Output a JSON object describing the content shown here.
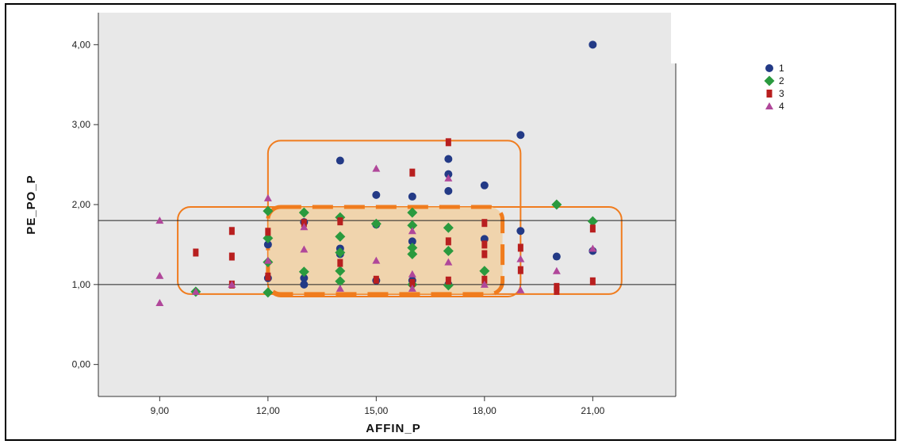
{
  "chart_data": {
    "type": "scatter",
    "xlabel": "AFFIN_P",
    "ylabel": "PE_PO_P",
    "xlim": [
      7.3,
      23.3
    ],
    "ylim": [
      -0.4,
      4.4
    ],
    "x_ticks": [
      "9,00",
      "12,00",
      "15,00",
      "18,00",
      "21,00"
    ],
    "x_tick_values": [
      9,
      12,
      15,
      18,
      21
    ],
    "y_ticks": [
      "0,00",
      "1,00",
      "2,00",
      "3,00",
      "4,00"
    ],
    "y_tick_values": [
      0,
      1,
      2,
      3,
      4
    ],
    "reference_lines_y": [
      1.0,
      1.8
    ],
    "grid": false,
    "legend_position": "top-right",
    "background_color": "#e8e8e8",
    "annotation_color": "#f07c1e",
    "highlight_fill": "#f4c98e",
    "highlight_regions": [
      {
        "style": "solid",
        "x": [
          12,
          19
        ],
        "y": [
          0.85,
          2.8
        ]
      },
      {
        "style": "solid",
        "x": [
          9.5,
          21.8
        ],
        "y": [
          0.88,
          1.97
        ]
      },
      {
        "style": "dashed-filled",
        "x": [
          12,
          18.5
        ],
        "y": [
          0.88,
          1.97
        ]
      }
    ],
    "series": [
      {
        "name": "1",
        "marker": "circle",
        "color": "#233a86",
        "points": [
          [
            14,
            2.55
          ],
          [
            15,
            2.12
          ],
          [
            16,
            2.1
          ],
          [
            17,
            2.57
          ],
          [
            17,
            2.38
          ],
          [
            17,
            2.17
          ],
          [
            18,
            2.24
          ],
          [
            19,
            2.87
          ],
          [
            21,
            4.0
          ],
          [
            20,
            1.35
          ],
          [
            19,
            1.67
          ],
          [
            21,
            1.42
          ],
          [
            18,
            1.57
          ],
          [
            12,
            1.5
          ],
          [
            13,
            1.78
          ],
          [
            14,
            1.45
          ],
          [
            15,
            1.75
          ],
          [
            16,
            1.54
          ],
          [
            12,
            1.08
          ],
          [
            13,
            1.08
          ],
          [
            14,
            1.38
          ],
          [
            16,
            1.05
          ],
          [
            13,
            1.0
          ],
          [
            17,
            1.0
          ],
          [
            15,
            1.05
          ]
        ]
      },
      {
        "name": "2",
        "marker": "diamond",
        "color": "#2a9a3e",
        "points": [
          [
            10,
            0.91
          ],
          [
            12,
            1.92
          ],
          [
            12,
            1.58
          ],
          [
            12,
            1.28
          ],
          [
            12,
            0.9
          ],
          [
            13,
            1.9
          ],
          [
            13,
            1.16
          ],
          [
            14,
            1.84
          ],
          [
            14,
            1.6
          ],
          [
            14,
            1.4
          ],
          [
            14,
            1.17
          ],
          [
            14,
            1.04
          ],
          [
            15,
            1.76
          ],
          [
            16,
            1.9
          ],
          [
            16,
            1.74
          ],
          [
            16,
            1.46
          ],
          [
            16,
            1.38
          ],
          [
            16,
            1.0
          ],
          [
            17,
            1.71
          ],
          [
            17,
            1.42
          ],
          [
            18,
            1.17
          ],
          [
            20,
            2.0
          ],
          [
            21,
            1.79
          ],
          [
            17,
            0.99
          ]
        ]
      },
      {
        "name": "3",
        "marker": "square",
        "color": "#b81f1f",
        "points": [
          [
            10,
            1.4
          ],
          [
            11,
            1.67
          ],
          [
            11,
            1.35
          ],
          [
            11,
            1.0
          ],
          [
            12,
            1.66
          ],
          [
            12,
            1.1
          ],
          [
            13,
            1.77
          ],
          [
            14,
            1.79
          ],
          [
            14,
            1.27
          ],
          [
            15,
            1.06
          ],
          [
            16,
            2.4
          ],
          [
            16,
            1.02
          ],
          [
            17,
            2.78
          ],
          [
            17,
            1.54
          ],
          [
            17,
            1.05
          ],
          [
            18,
            1.77
          ],
          [
            18,
            1.5
          ],
          [
            18,
            1.38
          ],
          [
            18,
            1.06
          ],
          [
            19,
            1.46
          ],
          [
            19,
            1.18
          ],
          [
            20,
            0.97
          ],
          [
            20,
            0.92
          ],
          [
            21,
            1.7
          ],
          [
            21,
            1.04
          ]
        ]
      },
      {
        "name": "4",
        "marker": "triangle",
        "color": "#b0479a",
        "points": [
          [
            9,
            1.8
          ],
          [
            9,
            1.11
          ],
          [
            9,
            0.77
          ],
          [
            10,
            0.91
          ],
          [
            11,
            1.0
          ],
          [
            12,
            2.08
          ],
          [
            12,
            1.3
          ],
          [
            13,
            1.72
          ],
          [
            13,
            1.44
          ],
          [
            14,
            0.95
          ],
          [
            15,
            2.45
          ],
          [
            15,
            1.3
          ],
          [
            16,
            1.67
          ],
          [
            16,
            1.13
          ],
          [
            16,
            0.95
          ],
          [
            17,
            2.33
          ],
          [
            17,
            1.28
          ],
          [
            19,
            1.32
          ],
          [
            19,
            0.93
          ],
          [
            20,
            1.17
          ],
          [
            21,
            1.45
          ],
          [
            18,
            1.0
          ]
        ]
      }
    ]
  }
}
